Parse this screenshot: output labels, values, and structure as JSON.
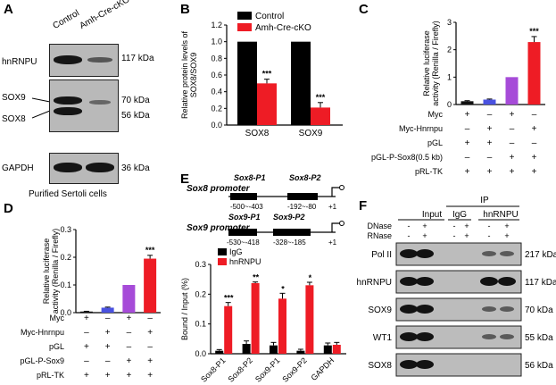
{
  "panels": {
    "A": {
      "letter": "A",
      "lanes": [
        "Control",
        "Amh-Cre-cKO"
      ],
      "rows": [
        {
          "protein": "hnRNPU",
          "kda": "117 kDa"
        },
        {
          "protein": "SOX9",
          "kda": "70 kDa"
        },
        {
          "protein": "SOX8",
          "kda": "56 kDa"
        },
        {
          "protein": "GAPDH",
          "kda": "36 kDa"
        }
      ],
      "caption": "Purified Sertoli cells"
    },
    "B": {
      "letter": "B"
    },
    "C": {
      "letter": "C",
      "rows": [
        {
          "label": "Myc",
          "marks": [
            "+",
            "–",
            "+",
            "–"
          ]
        },
        {
          "label": "Myc-Hnrnpu",
          "marks": [
            "–",
            "+",
            "–",
            "+"
          ]
        },
        {
          "label": "pGL",
          "marks": [
            "+",
            "+",
            "–",
            "–"
          ]
        },
        {
          "label": "pGL-P-Sox8(0.5 kb)",
          "marks": [
            "–",
            "–",
            "+",
            "+"
          ]
        },
        {
          "label": "pRL-TK",
          "marks": [
            "+",
            "+",
            "+",
            "+"
          ]
        }
      ]
    },
    "D": {
      "letter": "D",
      "rows": [
        {
          "label": "Myc",
          "marks": [
            "+",
            "–",
            "+",
            "–"
          ]
        },
        {
          "label": "Myc-Hnrnpu",
          "marks": [
            "–",
            "+",
            "–",
            "+"
          ]
        },
        {
          "label": "pGL",
          "marks": [
            "+",
            "+",
            "–",
            "–"
          ]
        },
        {
          "label": "pGL-P-Sox9",
          "marks": [
            "–",
            "–",
            "+",
            "+"
          ]
        },
        {
          "label": "pRL-TK",
          "marks": [
            "+",
            "+",
            "+",
            "+"
          ]
        }
      ]
    },
    "E": {
      "letter": "E",
      "sox8_promoter": "Sox8 promoter",
      "sox9_promoter": "Sox9 promoter",
      "sox8_p1": "Sox8-P1",
      "sox8_p1_range": "-500~-403",
      "sox8_p2": "Sox8-P2",
      "sox8_p2_range": "-192~-80",
      "sox9_p1": "Sox9-P1",
      "sox9_p1_range": "-530~-418",
      "sox9_p2": "Sox9-P2",
      "sox9_p2_range": "-328~-185",
      "tss": "+1"
    },
    "F": {
      "letter": "F",
      "input_header": "Input",
      "ip_header": "IP",
      "igg_header": "IgG",
      "hnrnpu_header": "hnRNPU",
      "dnase_label": "DNase",
      "rnase_label": "RNase",
      "dnase_marks": [
        "-",
        "+",
        "-",
        "+",
        "-",
        "+"
      ],
      "rnase_marks": [
        "-",
        "+",
        "-",
        "+",
        "-",
        "+"
      ],
      "rows": [
        {
          "protein": "Pol II",
          "kda": "217 kDa"
        },
        {
          "protein": "hnRNPU",
          "kda": "117 kDa"
        },
        {
          "protein": "SOX9",
          "kda": "70 kDa"
        },
        {
          "protein": "WT1",
          "kda": "55 kDa"
        },
        {
          "protein": "SOX8",
          "kda": "56 kDa"
        }
      ]
    }
  },
  "chart_data": [
    {
      "id": "B",
      "type": "bar",
      "categories": [
        "SOX8",
        "SOX9"
      ],
      "series": [
        {
          "name": "Control",
          "color": "#000000",
          "values": [
            1.0,
            1.0
          ]
        },
        {
          "name": "Amh-Cre-cKO",
          "color": "#ee1c25",
          "values": [
            0.5,
            0.21
          ],
          "errors": [
            0.05,
            0.06
          ]
        }
      ],
      "ylabel": "Relative protein levels of SOX8/SOX9",
      "ylim": [
        0,
        1.2
      ],
      "yticks": [
        0.0,
        0.2,
        0.4,
        0.6,
        0.8,
        1.0,
        1.2
      ],
      "tick_labels": [
        "0.0",
        "0.2",
        "0.4",
        "0.6",
        "0.8",
        "1.0",
        "1.2"
      ],
      "annotations": [
        "***",
        "***"
      ]
    },
    {
      "id": "C",
      "type": "bar",
      "categories": [
        "1",
        "2",
        "3",
        "4"
      ],
      "values": [
        0.12,
        0.18,
        1.0,
        2.28
      ],
      "errors": [
        0.02,
        0.02,
        0,
        0.2
      ],
      "colors": [
        "#111111",
        "#4a52e0",
        "#a64bd8",
        "#ee1c25"
      ],
      "ylabel": "Relative luciferase activity (Renilla / Firefly)",
      "ylim": [
        0,
        3
      ],
      "yticks": [
        0,
        1,
        2,
        3
      ],
      "tick_labels": [
        "0",
        "1",
        "2",
        "3"
      ],
      "annotations": [
        "",
        "",
        "",
        "***"
      ]
    },
    {
      "id": "D",
      "type": "bar",
      "categories": [
        "1",
        "2",
        "3",
        "4"
      ],
      "values": [
        0.004,
        0.018,
        0.1,
        0.195
      ],
      "errors": [
        0.001,
        0.002,
        0,
        0.012
      ],
      "colors": [
        "#111111",
        "#4a52e0",
        "#a64bd8",
        "#ee1c25"
      ],
      "ylabel": "Relative luciferase activity (Renilla / Firefly)",
      "ylim": [
        0,
        0.3
      ],
      "yticks": [
        0,
        0.1,
        0.2,
        0.3
      ],
      "tick_labels": [
        "0.0",
        "0.1",
        "0.2",
        "0.3"
      ],
      "annotations": [
        "",
        "",
        "",
        "***"
      ]
    },
    {
      "id": "E",
      "type": "bar",
      "categories": [
        "Sox8-P1",
        "Sox8-P2",
        "Sox9-P1",
        "Sox9-P2",
        "GAPDH"
      ],
      "series": [
        {
          "name": "IgG",
          "color": "#000000",
          "values": [
            0.01,
            0.033,
            0.028,
            0.01,
            0.028
          ],
          "errors": [
            0.004,
            0.01,
            0.01,
            0.005,
            0.008
          ]
        },
        {
          "name": "hnRNPU",
          "color": "#ee1c25",
          "values": [
            0.16,
            0.237,
            0.185,
            0.23,
            0.03
          ],
          "errors": [
            0.012,
            0.004,
            0.018,
            0.01,
            0.008
          ]
        }
      ],
      "ylabel": "Bound / Input (%)",
      "ylim": [
        0,
        0.3
      ],
      "yticks": [
        0,
        0.1,
        0.2,
        0.3
      ],
      "tick_labels": [
        "0.0",
        "0.1",
        "0.2",
        "0.3"
      ],
      "annotations": [
        "***",
        "**",
        "*",
        "*",
        ""
      ]
    }
  ]
}
